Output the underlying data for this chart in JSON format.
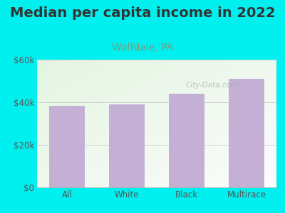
{
  "title": "Median per capita income in 2022",
  "subtitle": "Wolfdale, PA",
  "categories": [
    "All",
    "White",
    "Black",
    "Multirace"
  ],
  "values": [
    38500,
    39000,
    44000,
    51000
  ],
  "bar_color": "#c4b0d5",
  "background_outer": "#00f0f0",
  "title_color": "#333333",
  "subtitle_color": "#7a9a7a",
  "tick_label_color": "#555555",
  "title_fontsize": 14,
  "subtitle_fontsize": 10,
  "ylim": [
    0,
    60000
  ],
  "yticks": [
    0,
    20000,
    40000,
    60000
  ],
  "ytick_labels": [
    "$0",
    "$20k",
    "$40k",
    "$60k"
  ],
  "watermark": "City-Data.com"
}
